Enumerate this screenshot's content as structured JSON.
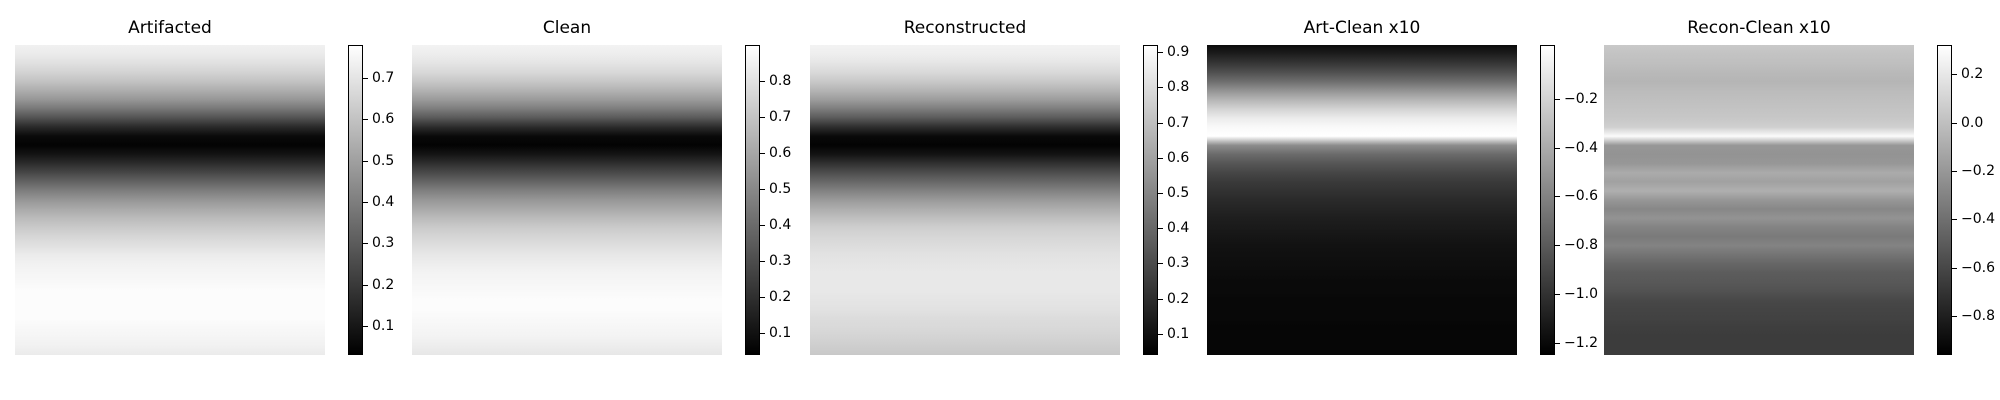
{
  "chart_data": [
    {
      "type": "heatmap",
      "title": "Artifacted",
      "colormap": "gray",
      "colorbar": {
        "vmin": 0.03,
        "vmax": 0.78,
        "ticks": [
          0.1,
          0.2,
          0.3,
          0.4,
          0.5,
          0.6,
          0.7
        ],
        "tick_labels": [
          "0.1",
          "0.2",
          "0.3",
          "0.4",
          "0.5",
          "0.6",
          "0.7"
        ]
      },
      "row_profile": [
        0.74,
        0.72,
        0.69,
        0.65,
        0.6,
        0.54,
        0.47,
        0.38,
        0.27,
        0.15,
        0.06,
        0.04,
        0.09,
        0.16,
        0.24,
        0.32,
        0.4,
        0.47,
        0.53,
        0.58,
        0.62,
        0.66,
        0.69,
        0.72,
        0.74,
        0.75,
        0.76,
        0.77,
        0.77,
        0.77,
        0.77,
        0.76,
        0.75,
        0.74,
        0.72
      ]
    },
    {
      "type": "heatmap",
      "title": "Clean",
      "colormap": "gray",
      "colorbar": {
        "vmin": 0.04,
        "vmax": 0.9,
        "ticks": [
          0.1,
          0.2,
          0.3,
          0.4,
          0.5,
          0.6,
          0.7,
          0.8
        ],
        "tick_labels": [
          "0.1",
          "0.2",
          "0.3",
          "0.4",
          "0.5",
          "0.6",
          "0.7",
          "0.8"
        ]
      },
      "row_profile": [
        0.86,
        0.84,
        0.81,
        0.77,
        0.71,
        0.64,
        0.56,
        0.46,
        0.34,
        0.19,
        0.07,
        0.05,
        0.11,
        0.2,
        0.29,
        0.38,
        0.47,
        0.55,
        0.61,
        0.67,
        0.72,
        0.76,
        0.79,
        0.82,
        0.84,
        0.86,
        0.87,
        0.88,
        0.89,
        0.89,
        0.88,
        0.87,
        0.86,
        0.84,
        0.82
      ]
    },
    {
      "type": "heatmap",
      "title": "Reconstructed",
      "colormap": "gray",
      "colorbar": {
        "vmin": 0.04,
        "vmax": 0.92,
        "ticks": [
          0.1,
          0.2,
          0.3,
          0.4,
          0.5,
          0.6,
          0.7,
          0.8,
          0.9
        ],
        "tick_labels": [
          "0.1",
          "0.2",
          "0.3",
          "0.4",
          "0.5",
          "0.6",
          "0.7",
          "0.8",
          "0.9"
        ]
      },
      "row_profile": [
        0.88,
        0.86,
        0.83,
        0.79,
        0.73,
        0.66,
        0.58,
        0.47,
        0.35,
        0.2,
        0.07,
        0.05,
        0.11,
        0.21,
        0.31,
        0.4,
        0.49,
        0.57,
        0.64,
        0.7,
        0.75,
        0.78,
        0.8,
        0.82,
        0.83,
        0.84,
        0.84,
        0.84,
        0.83,
        0.82,
        0.8,
        0.79,
        0.77,
        0.75,
        0.73
      ]
    },
    {
      "type": "heatmap",
      "title": "Art-Clean x10",
      "colormap": "gray",
      "colorbar": {
        "vmin": -1.25,
        "vmax": 0.02,
        "ticks": [
          -1.2,
          -1.0,
          -0.8,
          -0.6,
          -0.4,
          -0.2
        ],
        "tick_labels": [
          "−1.2",
          "−1.0",
          "−0.8",
          "−0.6",
          "−0.4",
          "−0.2"
        ]
      },
      "row_profile": [
        -1.2,
        -1.1,
        -0.98,
        -0.85,
        -0.7,
        -0.52,
        -0.35,
        -0.2,
        -0.08,
        -0.01,
        0.02,
        -0.55,
        -0.72,
        -0.82,
        -0.9,
        -0.96,
        -1.0,
        -1.04,
        -1.07,
        -1.1,
        -1.12,
        -1.14,
        -1.16,
        -1.17,
        -1.18,
        -1.19,
        -1.2,
        -1.2,
        -1.21,
        -1.21,
        -1.21,
        -1.22,
        -1.22,
        -1.22,
        -1.22
      ]
    },
    {
      "type": "heatmap",
      "title": "Recon-Clean x10",
      "colormap": "gray",
      "colorbar": {
        "vmin": -0.96,
        "vmax": 0.32,
        "ticks": [
          -0.8,
          -0.6,
          -0.4,
          -0.2,
          0.0,
          0.2
        ],
        "tick_labels": [
          "−0.8",
          "−0.6",
          "−0.4",
          "−0.2",
          "0.0",
          "0.2"
        ]
      },
      "row_profile": [
        0.05,
        0.02,
        0.0,
        -0.03,
        -0.05,
        -0.02,
        0.0,
        0.02,
        0.04,
        0.08,
        0.3,
        -0.2,
        -0.22,
        -0.2,
        -0.1,
        -0.15,
        -0.08,
        -0.2,
        -0.28,
        -0.22,
        -0.3,
        -0.35,
        -0.3,
        -0.38,
        -0.45,
        -0.5,
        -0.52,
        -0.55,
        -0.6,
        -0.62,
        -0.63,
        -0.65,
        -0.66,
        -0.66,
        -0.66
      ]
    }
  ]
}
